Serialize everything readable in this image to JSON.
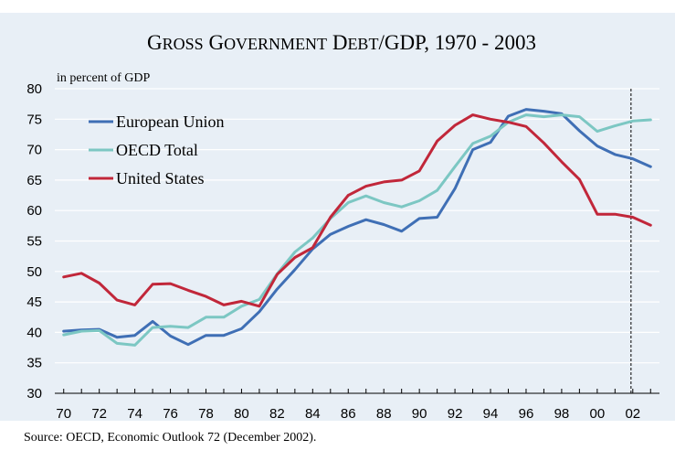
{
  "chart_data": {
    "type": "line",
    "title": "Gross Government Debt/GDP, 1970 - 2003",
    "ylabel": "in percent of GDP",
    "xlim": [
      1970,
      2003
    ],
    "ylim": [
      30,
      80
    ],
    "y_ticks": [
      "80",
      "75",
      "70",
      "65",
      "60",
      "55",
      "50",
      "45",
      "40",
      "35",
      "30"
    ],
    "y_tick_values": [
      80,
      75,
      70,
      65,
      60,
      55,
      50,
      45,
      40,
      35,
      30
    ],
    "x_ticks": [
      "70",
      "72",
      "74",
      "76",
      "78",
      "80",
      "82",
      "84",
      "86",
      "88",
      "90",
      "92",
      "94",
      "96",
      "98",
      "00",
      "02"
    ],
    "x_tick_values": [
      1970,
      1972,
      1974,
      1976,
      1978,
      1980,
      1982,
      1984,
      1986,
      1988,
      1990,
      1992,
      1994,
      1996,
      1998,
      2000,
      2002
    ],
    "forecast_marker_x": 2001.9,
    "grid": "horizontal",
    "legend_position": "top-left",
    "x": [
      1970,
      1971,
      1972,
      1973,
      1974,
      1975,
      1976,
      1977,
      1978,
      1979,
      1980,
      1981,
      1982,
      1983,
      1984,
      1985,
      1986,
      1987,
      1988,
      1989,
      1990,
      1991,
      1992,
      1993,
      1994,
      1995,
      1996,
      1997,
      1998,
      1999,
      2000,
      2001,
      2002,
      2003
    ],
    "series": [
      {
        "name": "European Union",
        "color": "#3f6fb5",
        "values": [
          40.2,
          40.4,
          40.5,
          39.2,
          39.5,
          41.8,
          39.4,
          38.0,
          39.5,
          39.5,
          40.6,
          43.4,
          47.1,
          50.3,
          53.7,
          56.1,
          57.4,
          58.5,
          57.7,
          56.6,
          58.7,
          58.9,
          63.6,
          70.0,
          71.2,
          75.5,
          76.6,
          76.3,
          75.9,
          73.1,
          70.6,
          69.2,
          68.5,
          67.2
        ]
      },
      {
        "name": "OECD Total",
        "color": "#7cc7c3",
        "values": [
          39.6,
          40.2,
          40.3,
          38.2,
          37.9,
          40.8,
          41.0,
          40.8,
          42.5,
          42.5,
          44.3,
          45.4,
          49.6,
          53.2,
          55.5,
          58.7,
          61.3,
          62.4,
          61.3,
          60.6,
          61.6,
          63.3,
          67.2,
          71.0,
          72.2,
          74.5,
          75.7,
          75.4,
          75.7,
          75.4,
          73.0,
          73.9,
          74.7,
          74.9
        ]
      },
      {
        "name": "United States",
        "color": "#c1273a",
        "values": [
          49.1,
          49.7,
          48.1,
          45.3,
          44.5,
          47.9,
          48.0,
          46.9,
          45.9,
          44.5,
          45.1,
          44.3,
          49.5,
          52.3,
          53.9,
          58.9,
          62.5,
          64.0,
          64.7,
          65.0,
          66.5,
          71.4,
          74.0,
          75.7,
          75.0,
          74.5,
          73.8,
          71.1,
          68.0,
          65.1,
          59.4,
          59.4,
          58.9,
          57.6
        ]
      }
    ]
  },
  "footer": {
    "source": "Source: OECD, Economic Outlook 72 (December 2002)."
  }
}
